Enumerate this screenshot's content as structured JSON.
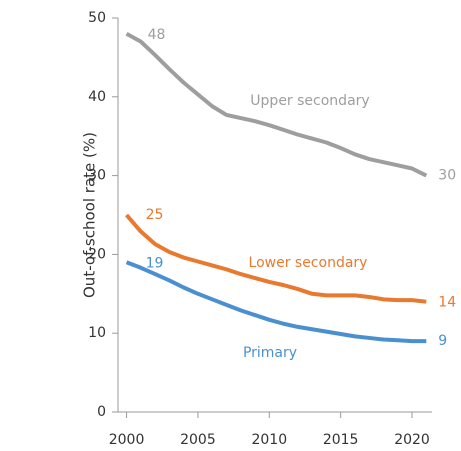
{
  "chart_data": {
    "type": "line",
    "y_label": "Out-of-school rate (%)",
    "x": [
      2000,
      2001,
      2002,
      2003,
      2004,
      2005,
      2006,
      2007,
      2008,
      2009,
      2010,
      2011,
      2012,
      2013,
      2014,
      2015,
      2016,
      2017,
      2018,
      2019,
      2020,
      2021
    ],
    "series": [
      {
        "name": "Upper secondary",
        "color": "#9e9e9e",
        "values": [
          48,
          47,
          45.3,
          43.5,
          41.8,
          40.3,
          38.8,
          37.7,
          37.3,
          36.9,
          36.4,
          35.8,
          35.2,
          34.7,
          34.2,
          33.5,
          32.7,
          32.1,
          31.7,
          31.3,
          30.9,
          30
        ]
      },
      {
        "name": "Lower secondary",
        "color": "#e8792f",
        "values": [
          25,
          22.9,
          21.3,
          20.3,
          19.6,
          19.1,
          18.6,
          18.1,
          17.5,
          17.0,
          16.5,
          16.1,
          15.6,
          15.0,
          14.8,
          14.8,
          14.8,
          14.6,
          14.3,
          14.2,
          14.2,
          14
        ]
      },
      {
        "name": "Primary",
        "color": "#4a90d0",
        "values": [
          19,
          18.3,
          17.5,
          16.7,
          15.8,
          15.0,
          14.3,
          13.6,
          12.9,
          12.3,
          11.7,
          11.2,
          10.8,
          10.5,
          10.2,
          9.9,
          9.6,
          9.4,
          9.2,
          9.1,
          9.0,
          9
        ]
      }
    ],
    "xlim": [
      1999.4,
      2021.4
    ],
    "xticks": [
      2000,
      2005,
      2010,
      2015,
      2020
    ],
    "ylim": [
      0,
      50
    ],
    "yticks": [
      0,
      10,
      20,
      30,
      40,
      50
    ],
    "grid": false
  }
}
